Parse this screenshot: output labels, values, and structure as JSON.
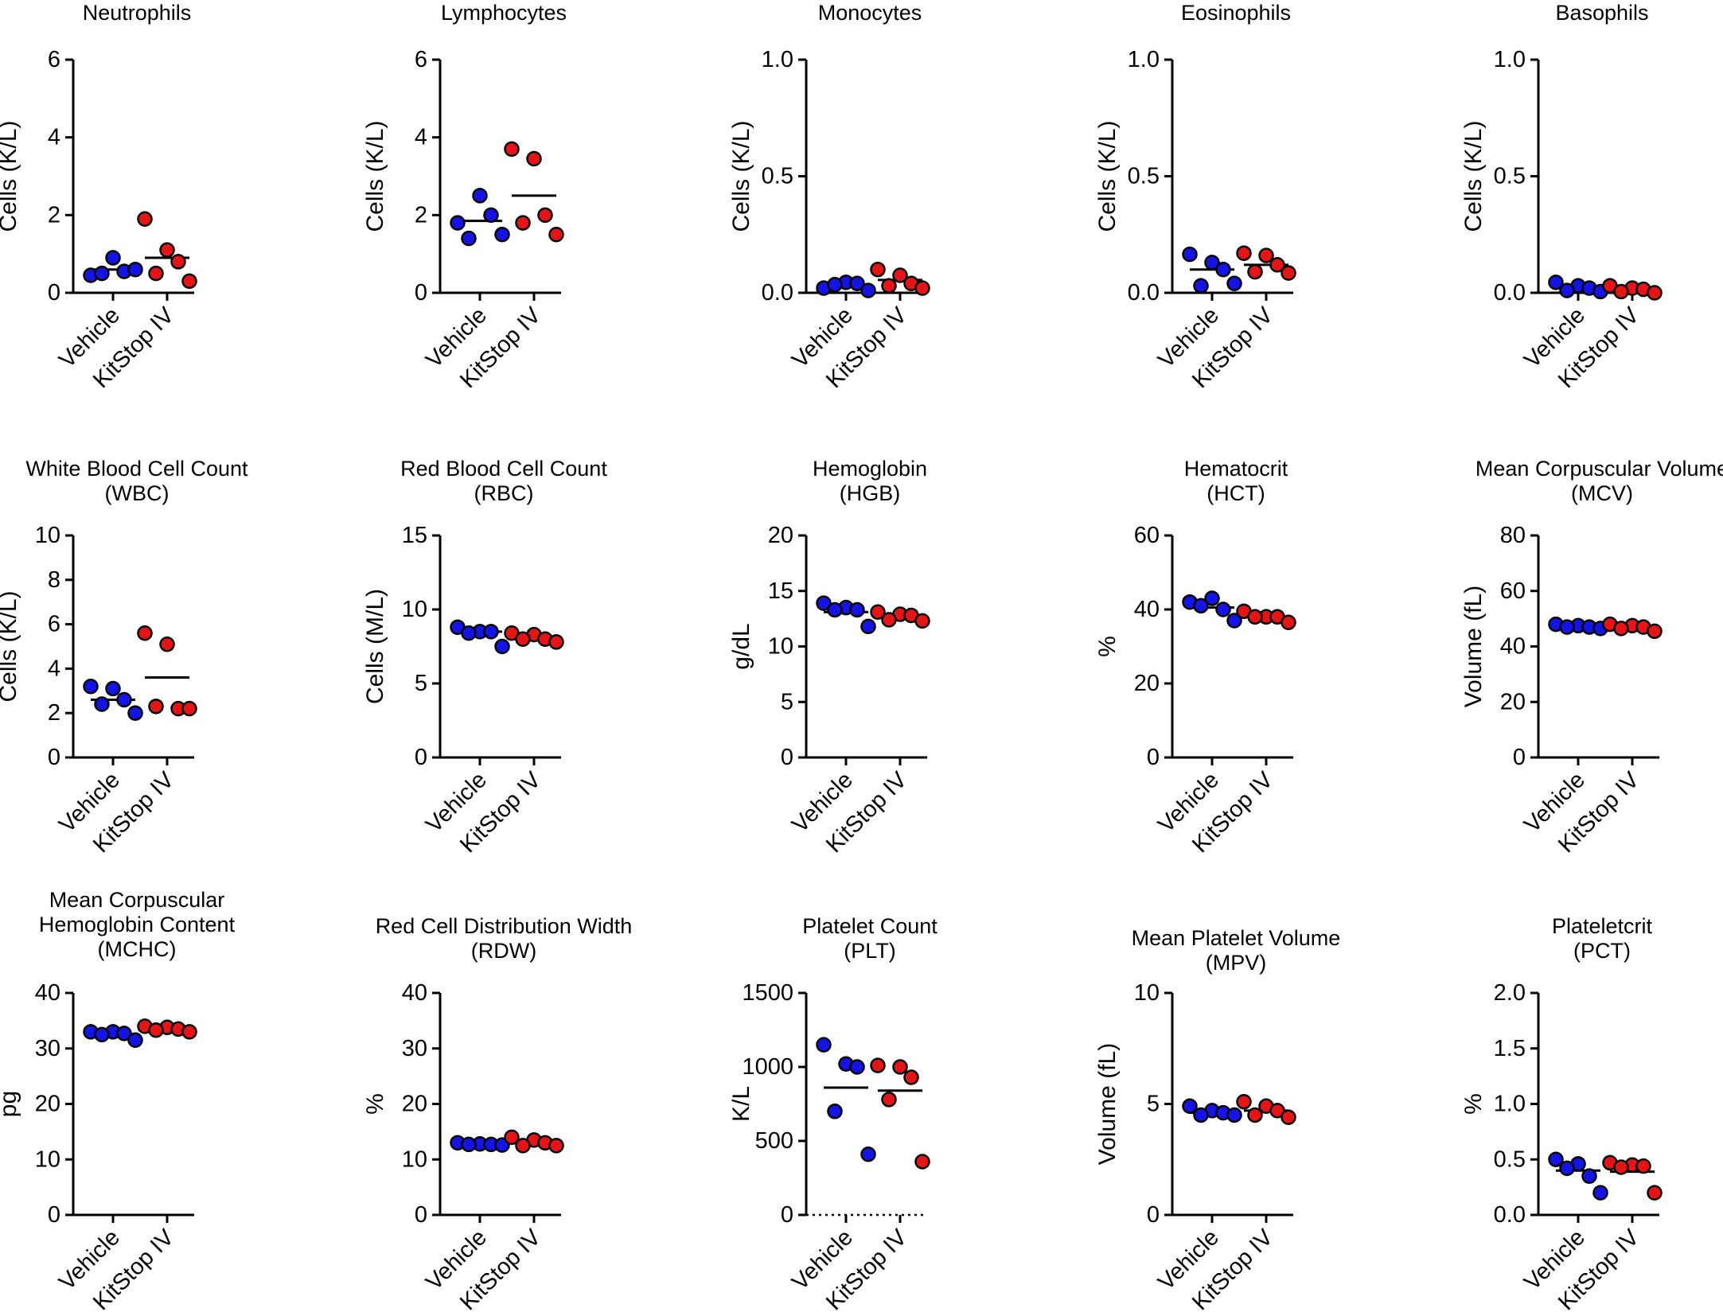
{
  "figure": {
    "colors": {
      "Vehicle": "#1414e6",
      "KitStop IV": "#e61414"
    }
  },
  "chart_data": [
    {
      "type": "scatter",
      "title_lines": [
        "Neutrophils"
      ],
      "ylabel": "Cells (K/L)",
      "ylim": [
        0,
        6
      ],
      "yticks": [
        "0",
        "2",
        "4",
        "6"
      ],
      "categories": [
        "Vehicle",
        "KitStop IV"
      ],
      "series": [
        {
          "name": "Vehicle",
          "values": [
            0.45,
            0.9,
            0.55,
            0.5,
            0.6
          ],
          "mean": 0.6
        },
        {
          "name": "KitStop IV",
          "values": [
            1.9,
            1.1,
            0.8,
            0.5,
            0.3
          ],
          "mean": 0.9
        }
      ]
    },
    {
      "type": "scatter",
      "title_lines": [
        "Lymphocytes"
      ],
      "ylabel": "Cells (K/L)",
      "ylim": [
        0,
        6
      ],
      "yticks": [
        "0",
        "2",
        "4",
        "6"
      ],
      "categories": [
        "Vehicle",
        "KitStop IV"
      ],
      "series": [
        {
          "name": "Vehicle",
          "values": [
            1.8,
            2.5,
            2.0,
            1.4,
            1.5
          ],
          "mean": 1.85
        },
        {
          "name": "KitStop IV",
          "values": [
            3.7,
            3.45,
            2.0,
            1.8,
            1.5
          ],
          "mean": 2.5
        }
      ]
    },
    {
      "type": "scatter",
      "title_lines": [
        "Monocytes"
      ],
      "ylabel": "Cells (K/L)",
      "ylim": [
        0,
        1
      ],
      "yticks": [
        "0.0",
        "0.5",
        "1.0"
      ],
      "categories": [
        "Vehicle",
        "KitStop IV"
      ],
      "series": [
        {
          "name": "Vehicle",
          "values": [
            0.02,
            0.045,
            0.04,
            0.035,
            0.01
          ],
          "mean": 0.03
        },
        {
          "name": "KitStop IV",
          "values": [
            0.1,
            0.075,
            0.04,
            0.03,
            0.02
          ],
          "mean": 0.055
        }
      ]
    },
    {
      "type": "scatter",
      "title_lines": [
        "Eosinophils"
      ],
      "ylabel": "Cells (K/L)",
      "ylim": [
        0,
        1
      ],
      "yticks": [
        "0.0",
        "0.5",
        "1.0"
      ],
      "categories": [
        "Vehicle",
        "KitStop IV"
      ],
      "series": [
        {
          "name": "Vehicle",
          "values": [
            0.165,
            0.13,
            0.1,
            0.03,
            0.04
          ],
          "mean": 0.1
        },
        {
          "name": "KitStop IV",
          "values": [
            0.17,
            0.16,
            0.12,
            0.09,
            0.085
          ],
          "mean": 0.12
        }
      ]
    },
    {
      "type": "scatter",
      "title_lines": [
        "Basophils"
      ],
      "ylabel": "Cells (K/L)",
      "ylim": [
        0,
        1
      ],
      "yticks": [
        "0.0",
        "0.5",
        "1.0"
      ],
      "categories": [
        "Vehicle",
        "KitStop IV"
      ],
      "series": [
        {
          "name": "Vehicle",
          "values": [
            0.045,
            0.03,
            0.02,
            0.01,
            0.005
          ],
          "mean": 0.02
        },
        {
          "name": "KitStop IV",
          "values": [
            0.03,
            0.02,
            0.015,
            0.005,
            0.0
          ],
          "mean": 0.015
        }
      ]
    },
    {
      "type": "scatter",
      "title_lines": [
        "White Blood Cell Count",
        "(WBC)"
      ],
      "ylabel": "Cells (K/L)",
      "ylim": [
        0,
        10
      ],
      "yticks": [
        "0",
        "2",
        "4",
        "6",
        "8",
        "10"
      ],
      "categories": [
        "Vehicle",
        "KitStop IV"
      ],
      "series": [
        {
          "name": "Vehicle",
          "values": [
            3.2,
            3.1,
            2.6,
            2.4,
            2.0
          ],
          "mean": 2.6
        },
        {
          "name": "KitStop IV",
          "values": [
            5.6,
            5.1,
            2.2,
            2.3,
            2.2
          ],
          "mean": 3.6
        }
      ]
    },
    {
      "type": "scatter",
      "title_lines": [
        "Red Blood Cell Count",
        "(RBC)"
      ],
      "ylabel": "Cells (M/L)",
      "ylim": [
        0,
        15
      ],
      "yticks": [
        "0",
        "5",
        "10",
        "15"
      ],
      "categories": [
        "Vehicle",
        "KitStop IV"
      ],
      "series": [
        {
          "name": "Vehicle",
          "values": [
            8.8,
            8.5,
            8.5,
            8.4,
            7.5
          ],
          "mean": 8.5
        },
        {
          "name": "KitStop IV",
          "values": [
            8.4,
            8.3,
            8.0,
            8.0,
            7.8
          ],
          "mean": 8.1
        }
      ]
    },
    {
      "type": "scatter",
      "title_lines": [
        "Hemoglobin",
        "(HGB)"
      ],
      "ylabel": "g/dL",
      "ylim": [
        0,
        20
      ],
      "yticks": [
        "0",
        "5",
        "10",
        "15",
        "20"
      ],
      "categories": [
        "Vehicle",
        "KitStop IV"
      ],
      "series": [
        {
          "name": "Vehicle",
          "values": [
            13.9,
            13.5,
            13.3,
            13.3,
            11.8
          ],
          "mean": 13.1
        },
        {
          "name": "KitStop IV",
          "values": [
            13.1,
            12.9,
            12.8,
            12.4,
            12.3
          ],
          "mean": 12.7
        }
      ]
    },
    {
      "type": "scatter",
      "title_lines": [
        "Hematocrit",
        "(HCT)"
      ],
      "ylabel": "%",
      "ylim": [
        0,
        60
      ],
      "yticks": [
        "0",
        "20",
        "40",
        "60"
      ],
      "categories": [
        "Vehicle",
        "KitStop IV"
      ],
      "series": [
        {
          "name": "Vehicle",
          "values": [
            42,
            43,
            40,
            41,
            37
          ],
          "mean": 40.5
        },
        {
          "name": "KitStop IV",
          "values": [
            39.5,
            38,
            38,
            38,
            36.5
          ],
          "mean": 38
        }
      ]
    },
    {
      "type": "scatter",
      "title_lines": [
        "Mean Corpuscular Volume",
        "(MCV)"
      ],
      "ylabel": "Volume (fL)",
      "ylim": [
        0,
        80
      ],
      "yticks": [
        "0",
        "20",
        "40",
        "60",
        "80"
      ],
      "categories": [
        "Vehicle",
        "KitStop IV"
      ],
      "series": [
        {
          "name": "Vehicle",
          "values": [
            48,
            47.5,
            47,
            47,
            46.5
          ],
          "mean": 47.2
        },
        {
          "name": "KitStop IV",
          "values": [
            48,
            47.5,
            47,
            46.5,
            45.5
          ],
          "mean": 47
        }
      ]
    },
    {
      "type": "scatter",
      "title_lines": [
        "Mean Corpuscular",
        "Hemoglobin Content",
        "(MCHC)"
      ],
      "ylabel": "pg",
      "ylim": [
        0,
        40
      ],
      "yticks": [
        "0",
        "10",
        "20",
        "30",
        "40"
      ],
      "categories": [
        "Vehicle",
        "KitStop IV"
      ],
      "series": [
        {
          "name": "Vehicle",
          "values": [
            33,
            33,
            32.7,
            32.5,
            31.5
          ],
          "mean": 32.6
        },
        {
          "name": "KitStop IV",
          "values": [
            34,
            33.8,
            33.5,
            33.3,
            33
          ],
          "mean": 33.6
        }
      ]
    },
    {
      "type": "scatter",
      "title_lines": [
        "Red Cell Distribution Width",
        "(RDW)"
      ],
      "ylabel": "%",
      "ylim": [
        0,
        40
      ],
      "yticks": [
        "0",
        "10",
        "20",
        "30",
        "40"
      ],
      "categories": [
        "Vehicle",
        "KitStop IV"
      ],
      "series": [
        {
          "name": "Vehicle",
          "values": [
            13,
            12.8,
            12.7,
            12.7,
            12.6
          ],
          "mean": 12.7
        },
        {
          "name": "KitStop IV",
          "values": [
            14,
            13.5,
            13,
            12.5,
            12.5
          ],
          "mean": 13
        }
      ]
    },
    {
      "type": "scatter",
      "title_lines": [
        "Platelet Count",
        "(PLT)"
      ],
      "ylabel": "K/L",
      "ylim": [
        0,
        1500
      ],
      "yticks": [
        "0",
        "500",
        "1000",
        "1500"
      ],
      "zero_line_dotted": true,
      "categories": [
        "Vehicle",
        "KitStop IV"
      ],
      "series": [
        {
          "name": "Vehicle",
          "values": [
            1150,
            1020,
            1000,
            700,
            410
          ],
          "mean": 860
        },
        {
          "name": "KitStop IV",
          "values": [
            1010,
            1000,
            930,
            780,
            360
          ],
          "mean": 840
        }
      ]
    },
    {
      "type": "scatter",
      "title_lines": [
        "Mean Platelet Volume",
        "(MPV)"
      ],
      "ylabel": "Volume (fL)",
      "ylim": [
        0,
        10
      ],
      "yticks": [
        "0",
        "5",
        "10"
      ],
      "categories": [
        "Vehicle",
        "KitStop IV"
      ],
      "series": [
        {
          "name": "Vehicle",
          "values": [
            4.9,
            4.7,
            4.6,
            4.5,
            4.5
          ],
          "mean": 4.6
        },
        {
          "name": "KitStop IV",
          "values": [
            5.1,
            4.9,
            4.7,
            4.5,
            4.4
          ],
          "mean": 4.7
        }
      ]
    },
    {
      "type": "scatter",
      "title_lines": [
        "Plateletcrit",
        "(PCT)"
      ],
      "ylabel": "%",
      "ylim": [
        0,
        2
      ],
      "yticks": [
        "0.0",
        "0.5",
        "1.0",
        "1.5",
        "2.0"
      ],
      "categories": [
        "Vehicle",
        "KitStop IV"
      ],
      "series": [
        {
          "name": "Vehicle",
          "values": [
            0.5,
            0.46,
            0.35,
            0.42,
            0.2
          ],
          "mean": 0.4
        },
        {
          "name": "KitStop IV",
          "values": [
            0.47,
            0.45,
            0.44,
            0.43,
            0.2
          ],
          "mean": 0.39
        }
      ]
    }
  ]
}
